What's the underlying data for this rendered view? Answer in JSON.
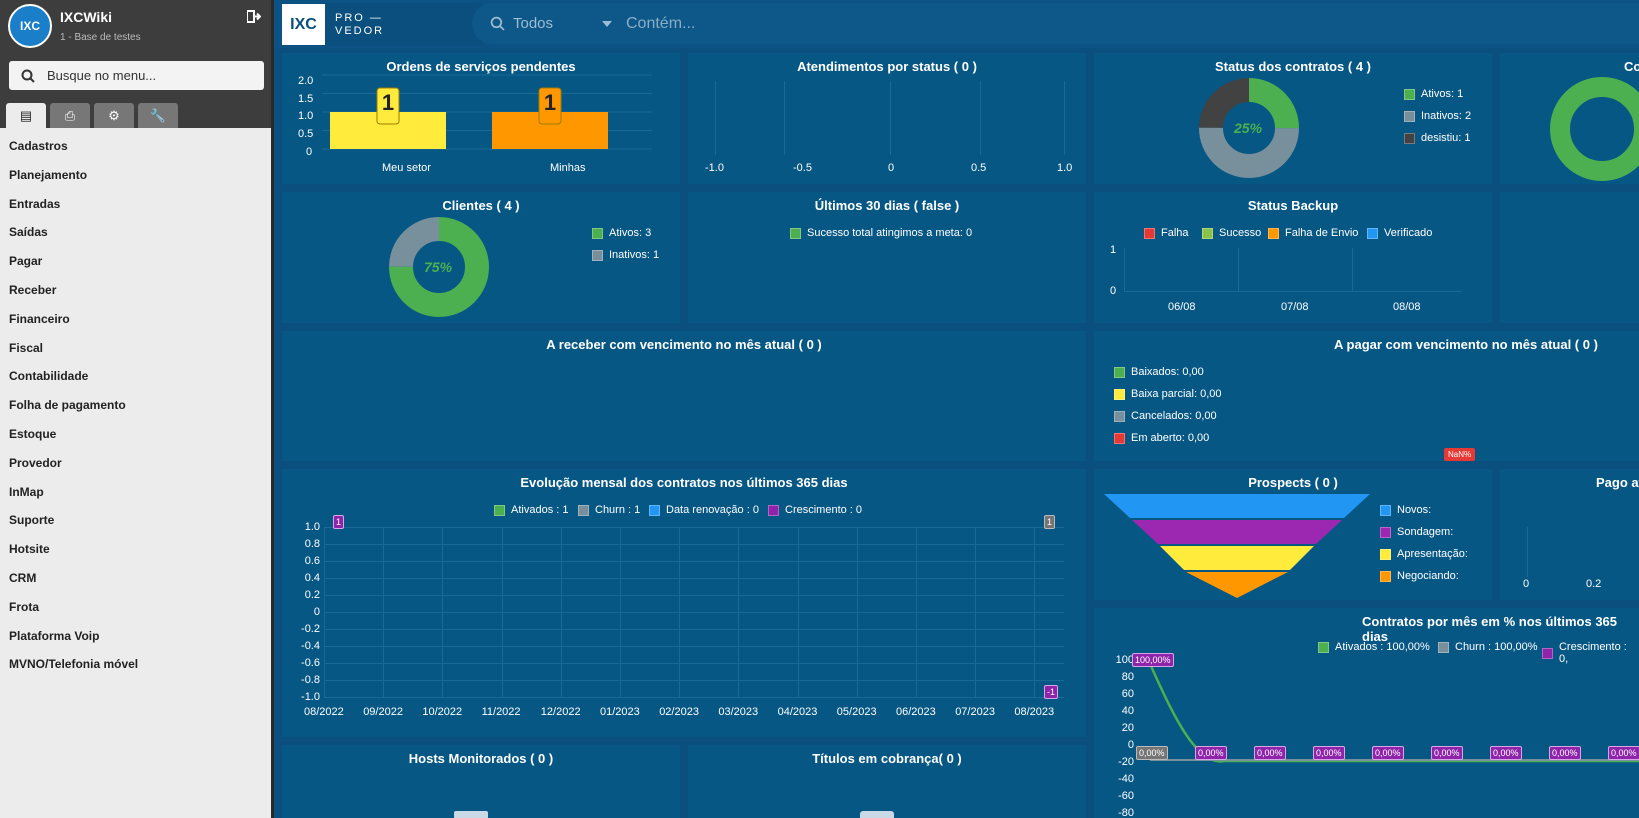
{
  "sidebar": {
    "logo": "IXC",
    "title": "IXCWiki",
    "subtitle": "1 - Base de testes",
    "search_placeholder": "Busque no menu...",
    "menu": [
      "Cadastros",
      "Planejamento",
      "Entradas",
      "Saídas",
      "Pagar",
      "Receber",
      "Financeiro",
      "Fiscal",
      "Contabilidade",
      "Folha de pagamento",
      "Estoque",
      "Provedor",
      "InMap",
      "Suporte",
      "Hotsite",
      "CRM",
      "Frota",
      "Plataforma Voip",
      "MVNO/Telefonia móvel"
    ]
  },
  "topbar": {
    "brand_logo": "IXC",
    "brand_line1": "PRO —",
    "brand_line2": "VEDOR",
    "filter_value": "Todos",
    "search_placeholder": "Contém..."
  },
  "panels": {
    "ordens": {
      "title": "Ordens de serviços pendentes",
      "y_ticks": [
        "2.0",
        "1.5",
        "1.0",
        "0.5",
        "0"
      ]
    },
    "atendimentos": {
      "title": "Atendimentos por status ( 0 )",
      "x_ticks": [
        "-1.0",
        "-0.5",
        "0",
        "0.5",
        "1.0"
      ]
    },
    "status_contratos": {
      "title": "Status dos contratos ( 4 )",
      "center": "25%",
      "legend": [
        "Ativos: 1",
        "Inativos: 2",
        "desistiu: 1"
      ]
    },
    "contratos_cut": {
      "title": "Co"
    },
    "clientes": {
      "title": "Clientes ( 4 )",
      "center": "75%",
      "legend": [
        "Ativos: 3",
        "Inativos: 1"
      ]
    },
    "ultimos": {
      "title": "Últimos 30 dias ( false )",
      "legend": "Sucesso total atingimos a meta: 0"
    },
    "backup": {
      "title": "Status Backup",
      "legend": [
        "Falha",
        "Sucesso",
        "Falha de Envio",
        "Verificado"
      ],
      "y_ticks": [
        "1",
        "0"
      ],
      "x_ticks": [
        "06/08",
        "07/08",
        "08/08"
      ]
    },
    "receber": {
      "title": "A receber com vencimento no mês atual ( 0 )"
    },
    "pagar": {
      "title": "A pagar com vencimento no mês atual ( 0 )",
      "legend": [
        "Baixados: 0,00",
        "Baixa parcial: 0,00",
        "Cancelados: 0,00",
        "Em aberto: 0,00"
      ],
      "nan_label": "NaN%"
    },
    "evolucao": {
      "title": "Evolução mensal dos contratos nos últimos 365 dias",
      "legend": [
        "Ativados : 1",
        "Churn : 1",
        "Data renovação : 0",
        "Crescimento : 0"
      ],
      "y_ticks": [
        "1.0",
        "0.8",
        "0.6",
        "0.4",
        "0.2",
        "0",
        "-0.2",
        "-0.4",
        "-0.6",
        "-0.8",
        "-1.0"
      ],
      "x_ticks": [
        "08/2022",
        "09/2022",
        "10/2022",
        "11/2022",
        "12/2022",
        "01/2023",
        "02/2023",
        "03/2023",
        "04/2023",
        "05/2023",
        "06/2023",
        "07/2023",
        "08/2023"
      ],
      "badge_start": "1",
      "badge_end_top": "1",
      "badge_end_bottom": "-1"
    },
    "prospects": {
      "title": "Prospects ( 0 )",
      "legend": [
        "Novos:",
        "Sondagem:",
        "Apresentação:",
        "Negociando:"
      ]
    },
    "pago": {
      "title": "Pago at",
      "x_ticks": [
        "0",
        "0.2"
      ]
    },
    "contratos_mes": {
      "title": "Contratos por mês em % nos últimos 365 dias",
      "legend": [
        "Ativados : 100,00%",
        "Churn : 100,00%",
        "Crescimento : 0,"
      ],
      "y_ticks": [
        "100",
        "80",
        "60",
        "40",
        "20",
        "0",
        "-20",
        "-40",
        "-60",
        "-80"
      ],
      "badge_first": "100,00%",
      "badges_zero": [
        "0,00%",
        "0,00%",
        "0,00%",
        "0,00%",
        "0,00%",
        "0,00%",
        "0,00%",
        "0,00%",
        "0,00%"
      ]
    },
    "hosts": {
      "title": "Hosts Monitorados ( 0 )"
    },
    "titulos": {
      "title": "Títulos em cobrança( 0 )"
    }
  },
  "chart_data": [
    {
      "type": "bar",
      "title": "Ordens de serviços pendentes",
      "categories": [
        "Meu setor",
        "Minhas"
      ],
      "values": [
        1,
        1
      ],
      "ylim": [
        0,
        2
      ],
      "colors": [
        "#ffeb3b",
        "#ff9800"
      ]
    },
    {
      "type": "pie",
      "title": "Status dos contratos ( 4 )",
      "labels": [
        "Ativos",
        "Inativos",
        "desistiu"
      ],
      "values": [
        1,
        2,
        1
      ],
      "colors": [
        "#4caf50",
        "#78909c",
        "#424242"
      ]
    },
    {
      "type": "pie",
      "title": "Clientes ( 4 )",
      "labels": [
        "Ativos",
        "Inativos"
      ],
      "values": [
        3,
        1
      ],
      "colors": [
        "#4caf50",
        "#78909c"
      ]
    }
  ]
}
